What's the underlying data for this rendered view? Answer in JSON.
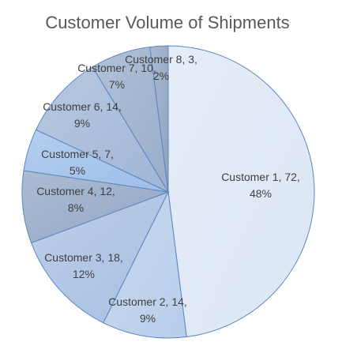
{
  "chart_data": {
    "type": "pie",
    "title": "Customer Volume of Shipments",
    "categories": [
      "Customer 1",
      "Customer 2",
      "Customer 3",
      "Customer 4",
      "Customer 5",
      "Customer 6",
      "Customer 7",
      "Customer 8"
    ],
    "values": [
      72,
      14,
      18,
      12,
      7,
      14,
      10,
      3
    ],
    "percent_labels": [
      "48%",
      "9%",
      "12%",
      "8%",
      "5%",
      "9%",
      "7%",
      "2%"
    ],
    "data_labels": [
      [
        "Customer 1, 72,",
        "48%"
      ],
      [
        "Customer 2, 14,",
        "9%"
      ],
      [
        "Customer 3, 18,",
        "12%"
      ],
      [
        "Customer 4, 12,",
        "8%"
      ],
      [
        "Customer 5, 7,",
        "5%"
      ],
      [
        "Customer 6, 14,",
        "9%"
      ],
      [
        "Customer 7, 10,",
        "7%"
      ],
      [
        "Customer 8, 3,",
        "2%"
      ]
    ],
    "colors": [
      "#dce6f4",
      "#b7cdea",
      "#a7bfe1",
      "#91a6c4",
      "#9dbde8",
      "#a0b6d6",
      "#98adca",
      "#8ea3c0"
    ],
    "edge_color": "#5b86c0",
    "start_angle_deg": 0,
    "direction": "clockwise",
    "legend": "none"
  }
}
